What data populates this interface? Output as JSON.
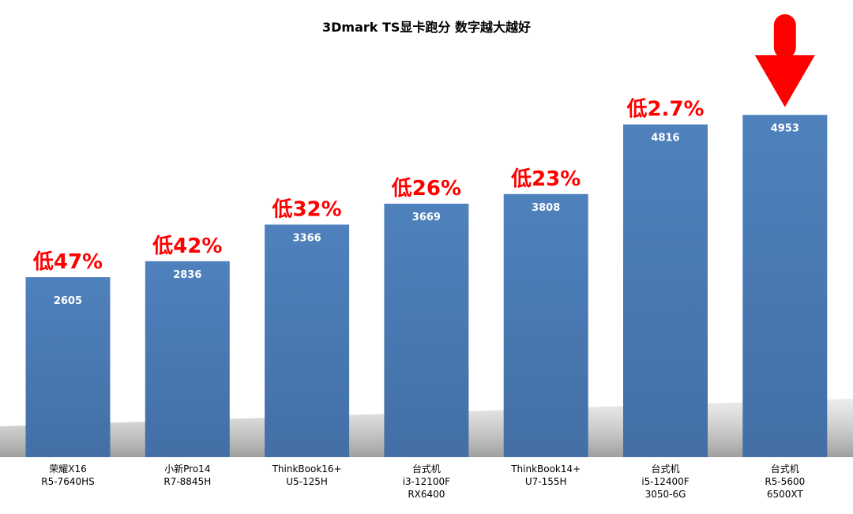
{
  "chart_data": {
    "type": "bar",
    "title": "3Dmark TS显卡跑分 数字越大越好",
    "xlabel": "",
    "ylabel": "",
    "ylim": [
      0,
      5500
    ],
    "grid": false,
    "categories": [
      [
        "荣耀X16",
        "R5-7640HS"
      ],
      [
        "小新Pro14",
        "R7-8845H"
      ],
      [
        "ThinkBook16+",
        "U5-125H"
      ],
      [
        "台式机",
        "i3-12100F",
        "RX6400"
      ],
      [
        "ThinkBook14+",
        "U7-155H"
      ],
      [
        "台式机",
        "i5-12400F",
        "3050-6G"
      ],
      [
        "台式机",
        "R5-5600",
        "6500XT"
      ]
    ],
    "values": [
      2605,
      2836,
      3366,
      3669,
      3808,
      4816,
      4953
    ],
    "annotations": [
      "低47%",
      "低42%",
      "低32%",
      "低26%",
      "低23%",
      "低2.7%",
      ""
    ],
    "highlight_index": 6,
    "colors": {
      "bar": "#4f81bd",
      "bar_value_text": "#ffffff",
      "annotation": "#ff0000",
      "arrow": "#ff0000",
      "shadow": "#c8c8c8",
      "title": "#000000",
      "category_text": "#000000"
    }
  }
}
